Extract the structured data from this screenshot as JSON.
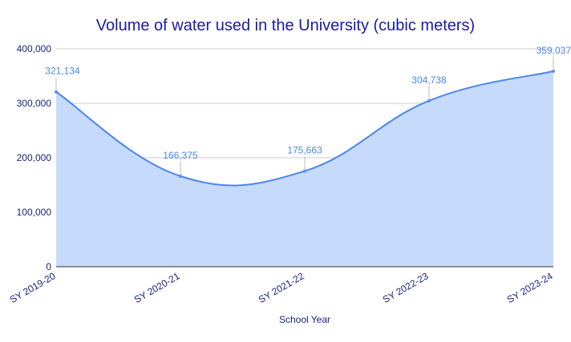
{
  "chart_data": {
    "type": "area",
    "title": "Volume of water used in the University (cubic meters)",
    "xlabel": "School Year",
    "ylabel": "",
    "categories": [
      "SY 2019-20",
      "SY 2020-21",
      "SY 2021-22",
      "SY 2022-23",
      "SY 2023-24"
    ],
    "values": [
      321134,
      166375,
      175663,
      304738,
      359037
    ],
    "data_labels": [
      "321,134",
      "166,375",
      "175,663",
      "304,738",
      "359,037"
    ],
    "yticks": [
      0,
      100000,
      200000,
      300000,
      400000
    ],
    "ytick_labels": [
      "0",
      "100,000",
      "200,000",
      "300,000",
      "400,000"
    ],
    "ylim": [
      0,
      400000
    ],
    "grid": true,
    "smooth": true,
    "colors": {
      "line": "#4a86f0",
      "fill": "#c6dafb",
      "label": "#4a86f0",
      "axis_text": "#1a237e",
      "title": "#1a1aa6",
      "grid": "#cccccc"
    }
  }
}
